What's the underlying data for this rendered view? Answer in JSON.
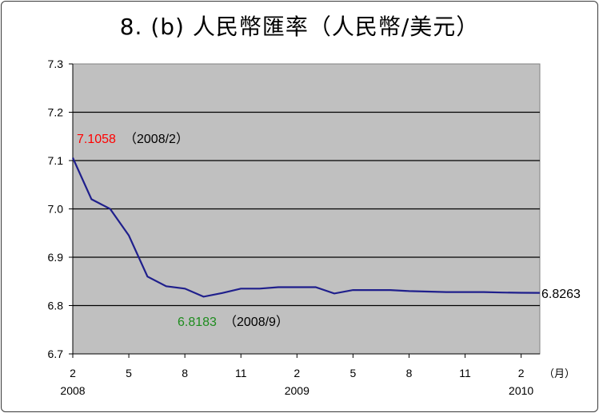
{
  "chart_data": {
    "type": "line",
    "title": "8. (b)  人民幣匯率（人民幣/美元）",
    "xlabel": "（月）",
    "ylabel": "",
    "ylim": [
      6.7,
      7.3
    ],
    "y_ticks": [
      "7.3",
      "7.2",
      "7.1",
      "7.0",
      "6.9",
      "6.8",
      "6.7"
    ],
    "grid": true,
    "x": [
      "2008/2",
      "2008/3",
      "2008/4",
      "2008/5",
      "2008/6",
      "2008/7",
      "2008/8",
      "2008/9",
      "2008/10",
      "2008/11",
      "2008/12",
      "2009/1",
      "2009/2",
      "2009/3",
      "2009/4",
      "2009/5",
      "2009/6",
      "2009/7",
      "2009/8",
      "2009/9",
      "2009/10",
      "2009/11",
      "2009/12",
      "2010/1",
      "2010/2",
      "2010/3"
    ],
    "x_tick_labels": [
      "2",
      "5",
      "8",
      "11",
      "2",
      "5",
      "8",
      "11",
      "2"
    ],
    "x_year_labels": [
      "2008",
      "2009",
      "2010"
    ],
    "series": [
      {
        "name": "",
        "color": "#1f1f8c",
        "values": [
          7.1058,
          7.02,
          7.0,
          6.945,
          6.86,
          6.84,
          6.835,
          6.8183,
          6.826,
          6.835,
          6.835,
          6.838,
          6.838,
          6.838,
          6.825,
          6.832,
          6.832,
          6.832,
          6.83,
          6.829,
          6.828,
          6.828,
          6.828,
          6.827,
          6.8265,
          6.8263
        ]
      }
    ],
    "annotations": {
      "max_value": "7.1058",
      "max_date": "（2008/2）",
      "max_color": "#ff0000",
      "min_value": "6.8183",
      "min_date": "（2008/9）",
      "min_color": "#1e8c1e",
      "last_value": "6.8263"
    },
    "plot_bg": "#c0c0c0"
  }
}
